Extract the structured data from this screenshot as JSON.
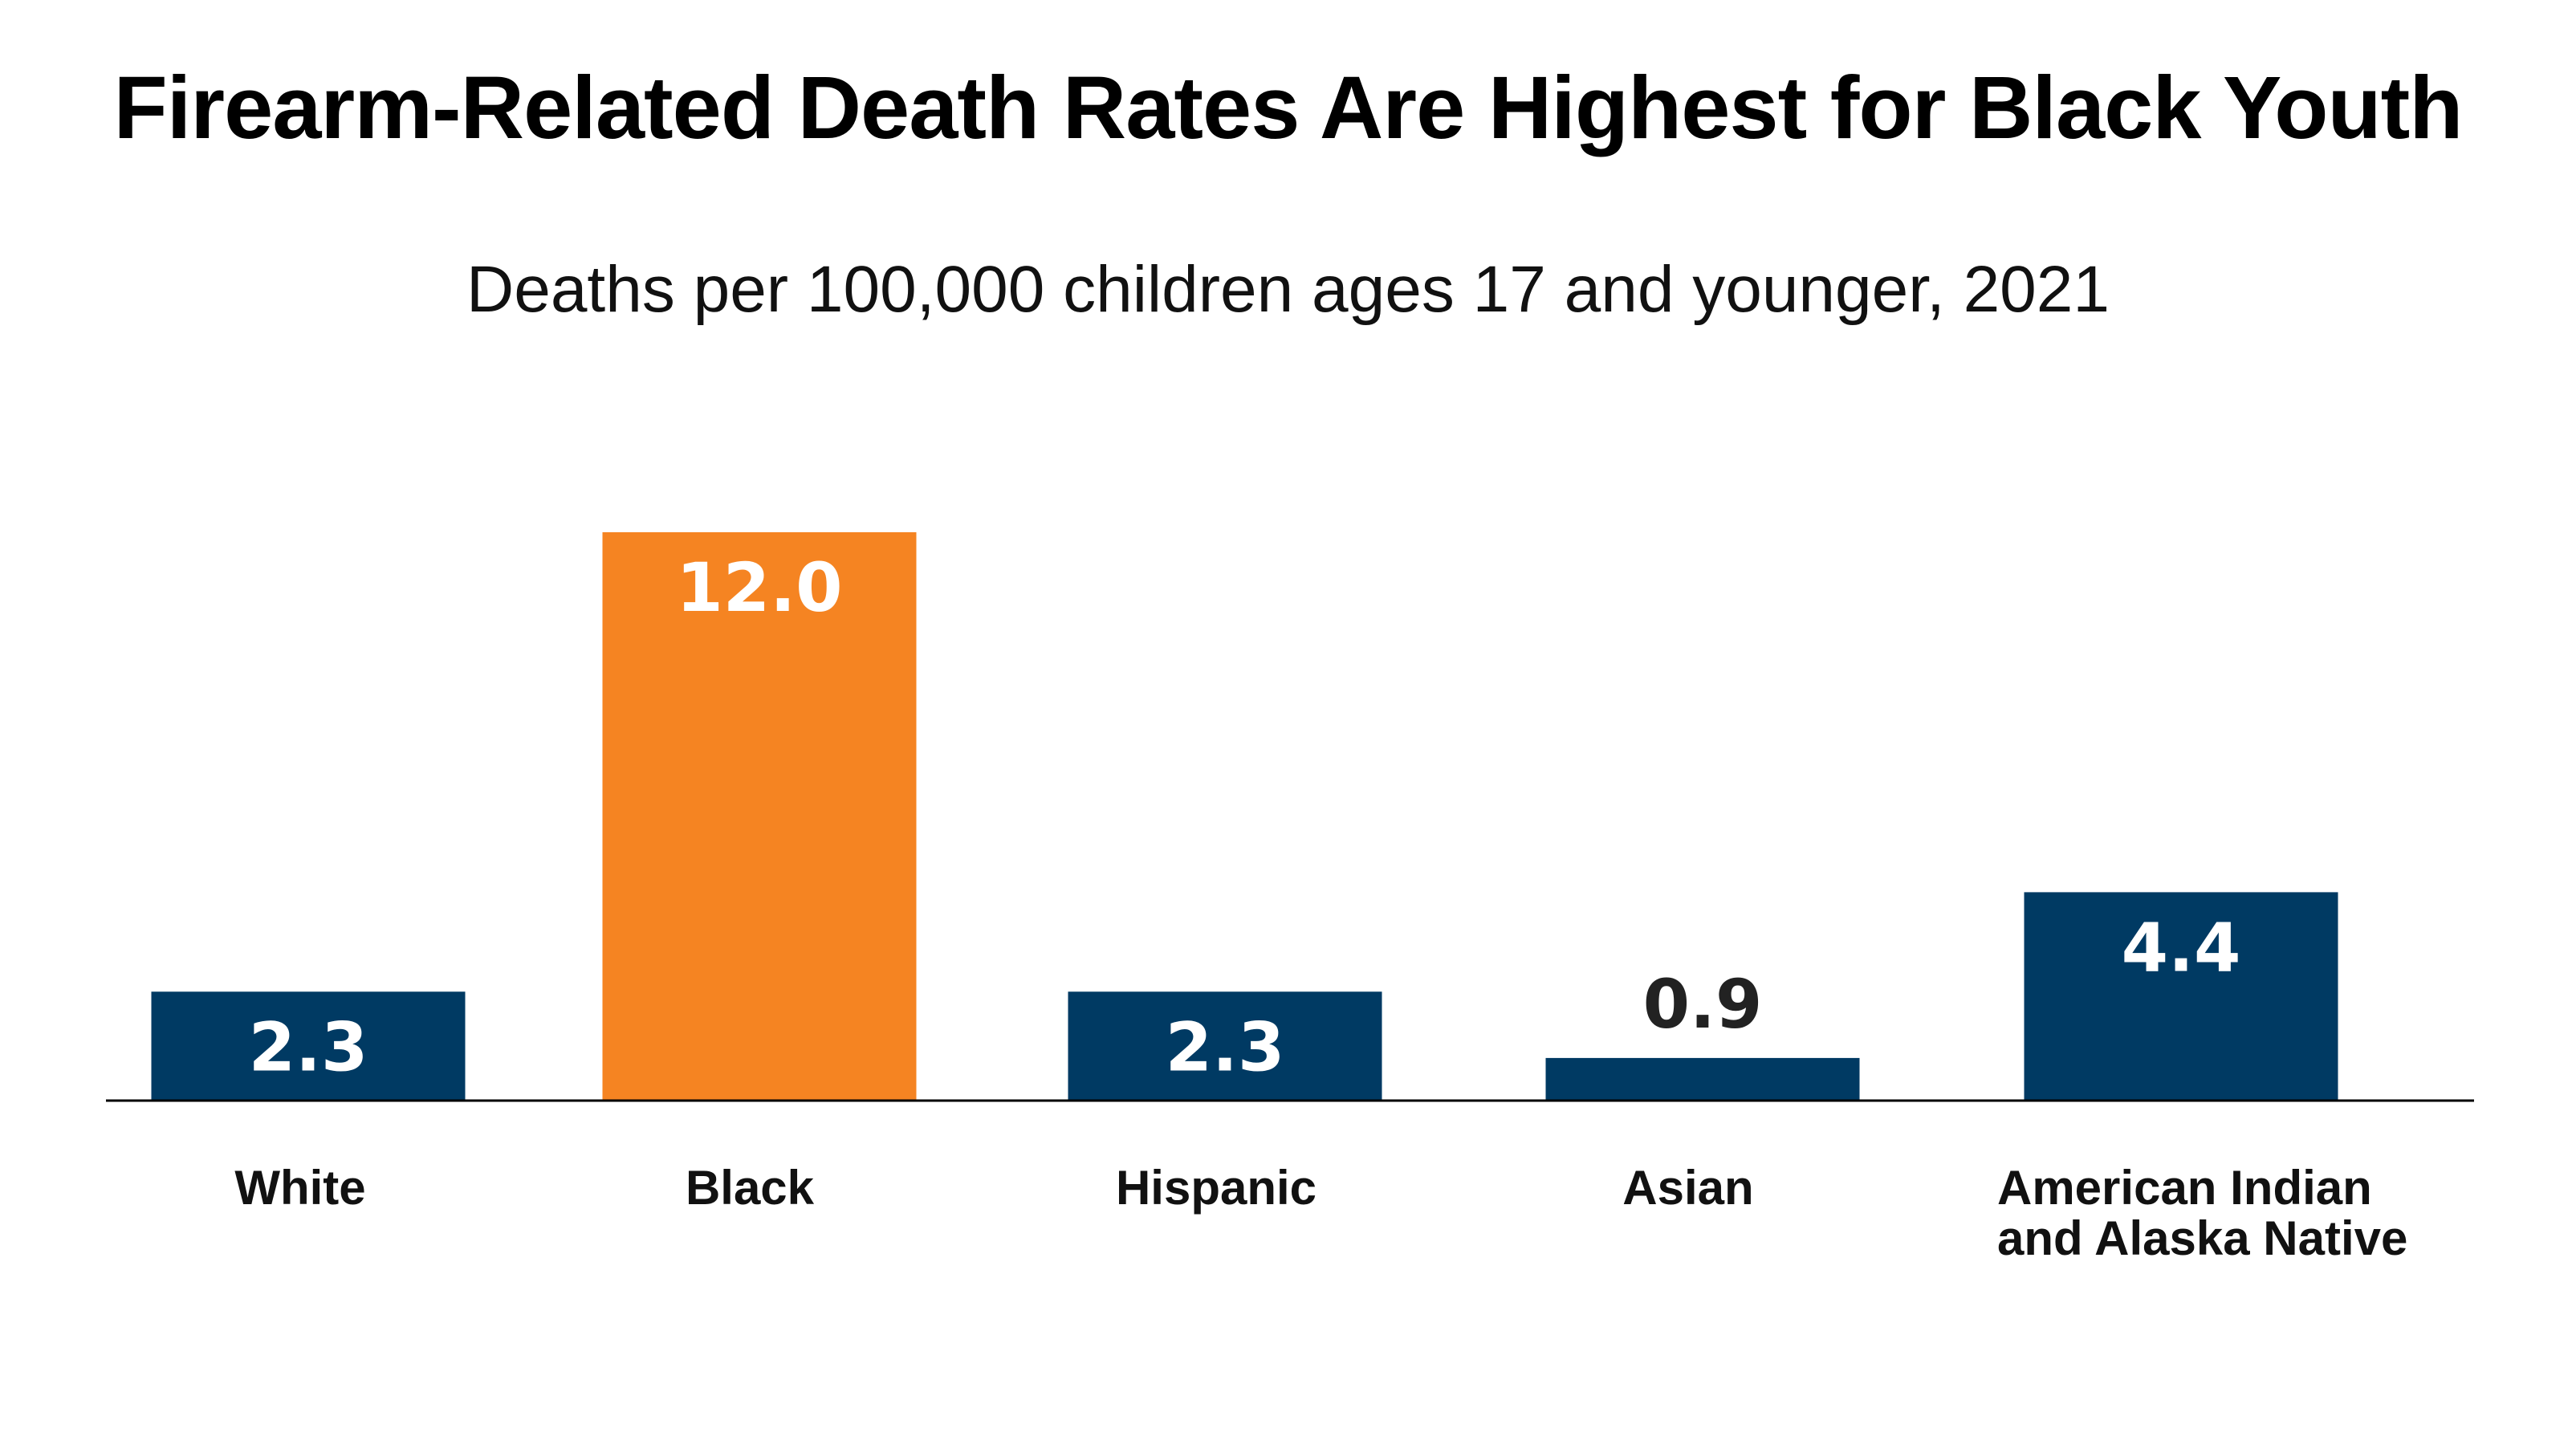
{
  "chart_data": {
    "type": "bar",
    "title": "Firearm-Related Death Rates Are Highest for Black Youth",
    "subtitle": "Deaths per 100,000 children ages 17 and younger, 2021",
    "xlabel": "",
    "ylabel": "",
    "ylim": [
      0,
      12.0
    ],
    "grid": false,
    "categories": [
      [
        "White"
      ],
      [
        "Black"
      ],
      [
        "Hispanic"
      ],
      [
        "Asian"
      ],
      [
        "American Indian",
        "and Alaska Native"
      ]
    ],
    "values": [
      2.3,
      12.0,
      2.3,
      0.9,
      4.4
    ],
    "value_labels": [
      "2.3",
      "12.0",
      "2.3",
      "0.9",
      "4.4"
    ],
    "highlight_index": 1,
    "colors": {
      "bar": "#003a63",
      "highlight": "#f58422",
      "label_on_bar": "#ffffff",
      "label_above_bar": "#222222",
      "axis": "#000000"
    }
  }
}
